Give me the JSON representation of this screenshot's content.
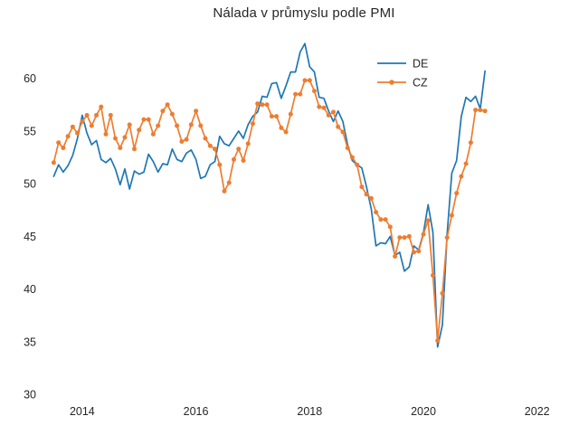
{
  "title": "Nálada v průmyslu podle PMI",
  "chart_data": {
    "type": "line",
    "title": "Nálada v průmyslu podle PMI",
    "xlabel": "",
    "ylabel": "",
    "frequency": "monthly",
    "start": "2013-07",
    "end": "2021-02",
    "xlim": [
      2013.35,
      2022.45
    ],
    "ylim": [
      29.5,
      64.0
    ],
    "xticks": [
      2014,
      2016,
      2018,
      2020,
      2022
    ],
    "yticks": [
      30,
      35,
      40,
      45,
      50,
      55,
      60
    ],
    "grid": false,
    "legend_position": "upper-right-inside",
    "series": [
      {
        "name": "DE",
        "color": "#1f77b4",
        "marker": false,
        "values": [
          50.7,
          51.8,
          51.1,
          51.7,
          52.7,
          54.3,
          56.5,
          54.8,
          53.7,
          54.1,
          52.3,
          52.0,
          52.4,
          51.4,
          49.9,
          51.4,
          49.5,
          51.2,
          50.9,
          51.1,
          52.8,
          52.1,
          51.1,
          51.9,
          51.8,
          53.3,
          52.3,
          52.1,
          52.9,
          53.2,
          52.3,
          50.5,
          50.7,
          51.8,
          52.1,
          54.5,
          53.8,
          53.6,
          54.3,
          55.0,
          54.3,
          55.6,
          56.4,
          56.8,
          58.3,
          58.2,
          59.5,
          59.6,
          58.1,
          59.3,
          60.6,
          60.6,
          62.5,
          63.3,
          61.1,
          60.6,
          58.2,
          58.1,
          56.9,
          55.9,
          56.9,
          55.9,
          53.7,
          52.2,
          51.8,
          51.5,
          49.7,
          47.6,
          44.1,
          44.4,
          44.3,
          45.0,
          43.2,
          43.5,
          41.7,
          42.1,
          44.1,
          43.7,
          45.3,
          48.0,
          45.4,
          34.5,
          36.6,
          45.2,
          51.0,
          52.2,
          56.4,
          58.2,
          57.8,
          58.3,
          57.1,
          60.7
        ]
      },
      {
        "name": "CZ",
        "color": "#ed7d31",
        "marker": true,
        "values": [
          52.0,
          53.9,
          53.4,
          54.5,
          55.4,
          54.8,
          55.9,
          56.5,
          55.5,
          56.5,
          57.3,
          54.7,
          56.5,
          54.3,
          53.4,
          54.4,
          55.6,
          53.3,
          55.1,
          56.1,
          56.1,
          54.7,
          55.5,
          56.9,
          57.5,
          56.6,
          55.5,
          54.0,
          54.2,
          55.6,
          56.9,
          55.5,
          54.3,
          53.6,
          53.3,
          51.8,
          49.3,
          50.1,
          52.3,
          53.3,
          52.2,
          53.8,
          55.7,
          57.6,
          57.5,
          57.5,
          56.4,
          56.4,
          55.3,
          54.9,
          56.6,
          58.5,
          58.5,
          59.8,
          59.8,
          58.8,
          57.3,
          57.2,
          56.5,
          56.8,
          55.4,
          54.9,
          53.4,
          52.5,
          51.8,
          49.7,
          49.0,
          48.6,
          47.3,
          46.6,
          46.6,
          45.9,
          43.1,
          44.9,
          44.9,
          45.0,
          43.5,
          43.6,
          45.2,
          46.5,
          41.3,
          35.1,
          39.6,
          44.9,
          47.0,
          49.1,
          50.7,
          51.9,
          53.9,
          57.0,
          57.0,
          56.9
        ]
      }
    ]
  }
}
